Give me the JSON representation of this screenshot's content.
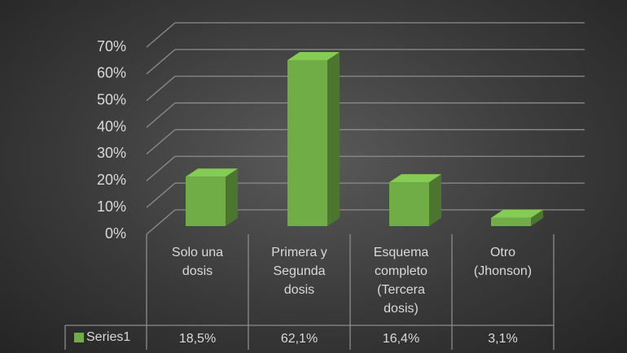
{
  "chart_data": {
    "type": "bar3d",
    "categories": [
      "Solo una dosis",
      "Primera y Segunda dosis",
      "Esquema completo (Tercera dosis)",
      "Otro (Jhonson)"
    ],
    "series": [
      {
        "name": "Series1",
        "color": "#70ad47",
        "values": [
          18.5,
          62.1,
          16.4,
          3.1
        ],
        "value_labels": [
          "18,5%",
          "62,1%",
          "16,4%",
          "3,1%"
        ]
      }
    ],
    "ylim": [
      0,
      70
    ],
    "yticks": [
      {
        "value": 0,
        "label": "0%"
      },
      {
        "value": 10,
        "label": "10%"
      },
      {
        "value": 20,
        "label": "20%"
      },
      {
        "value": 30,
        "label": "30%"
      },
      {
        "value": 40,
        "label": "40%"
      },
      {
        "value": 50,
        "label": "50%"
      },
      {
        "value": 60,
        "label": "60%"
      },
      {
        "value": 70,
        "label": "70%"
      }
    ],
    "grid": true,
    "data_table": true
  }
}
